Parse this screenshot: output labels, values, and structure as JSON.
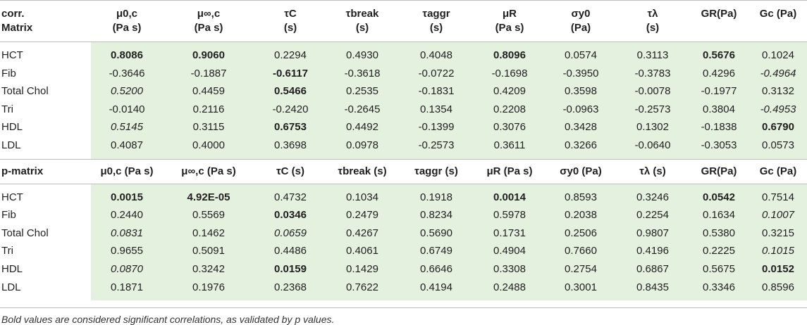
{
  "corr": {
    "header_label_line1": "corr.",
    "header_label_line2": "Matrix",
    "columns": [
      {
        "l1": "μ0,c",
        "l2": "(Pa s)"
      },
      {
        "l1": "μ∞,c",
        "l2": "(Pa s)"
      },
      {
        "l1": "τC",
        "l2": "(s)"
      },
      {
        "l1": "τbreak",
        "l2": "(s)"
      },
      {
        "l1": "τaggr",
        "l2": "(s)"
      },
      {
        "l1": "μR",
        "l2": "(Pa s)"
      },
      {
        "l1": "σy0",
        "l2": "(Pa)"
      },
      {
        "l1": "τλ",
        "l2": "(s)"
      },
      {
        "l1": "GR(Pa)",
        "l2": ""
      },
      {
        "l1": "Gc (Pa)",
        "l2": ""
      }
    ],
    "rows": [
      {
        "label": "HCT",
        "cells": [
          {
            "v": "0.8086",
            "s": "b"
          },
          {
            "v": "0.9060",
            "s": "b"
          },
          {
            "v": "0.2294",
            "s": ""
          },
          {
            "v": "0.4930",
            "s": ""
          },
          {
            "v": "0.4048",
            "s": ""
          },
          {
            "v": "0.8096",
            "s": "b"
          },
          {
            "v": "0.0574",
            "s": ""
          },
          {
            "v": "0.3113",
            "s": ""
          },
          {
            "v": "0.5676",
            "s": "b"
          },
          {
            "v": "0.1024",
            "s": ""
          }
        ]
      },
      {
        "label": "Fib",
        "cells": [
          {
            "v": "-0.3646",
            "s": ""
          },
          {
            "v": "-0.1887",
            "s": ""
          },
          {
            "v": "-0.6117",
            "s": "b"
          },
          {
            "v": "-0.3618",
            "s": ""
          },
          {
            "v": "-0.0722",
            "s": ""
          },
          {
            "v": "-0.1698",
            "s": ""
          },
          {
            "v": "-0.3950",
            "s": ""
          },
          {
            "v": "-0.3783",
            "s": ""
          },
          {
            "v": "0.4296",
            "s": ""
          },
          {
            "v": "-0.4964",
            "s": "i"
          }
        ]
      },
      {
        "label": "Total Chol",
        "cells": [
          {
            "v": "0.5200",
            "s": "i"
          },
          {
            "v": "0.4459",
            "s": ""
          },
          {
            "v": "0.5466",
            "s": "b"
          },
          {
            "v": "0.2535",
            "s": ""
          },
          {
            "v": "-0.1831",
            "s": ""
          },
          {
            "v": "0.4209",
            "s": ""
          },
          {
            "v": "0.3598",
            "s": ""
          },
          {
            "v": "-0.0078",
            "s": ""
          },
          {
            "v": "-0.1977",
            "s": ""
          },
          {
            "v": "0.3132",
            "s": ""
          }
        ]
      },
      {
        "label": "Tri",
        "cells": [
          {
            "v": "-0.0140",
            "s": ""
          },
          {
            "v": "0.2116",
            "s": ""
          },
          {
            "v": "-0.2420",
            "s": ""
          },
          {
            "v": "-0.2645",
            "s": ""
          },
          {
            "v": "0.1354",
            "s": ""
          },
          {
            "v": "0.2208",
            "s": ""
          },
          {
            "v": "-0.0963",
            "s": ""
          },
          {
            "v": "-0.2573",
            "s": ""
          },
          {
            "v": "0.3804",
            "s": ""
          },
          {
            "v": "-0.4953",
            "s": "i"
          }
        ]
      },
      {
        "label": "HDL",
        "cells": [
          {
            "v": "0.5145",
            "s": "i"
          },
          {
            "v": "0.3115",
            "s": ""
          },
          {
            "v": "0.6753",
            "s": "b"
          },
          {
            "v": "0.4492",
            "s": ""
          },
          {
            "v": "-0.1399",
            "s": ""
          },
          {
            "v": "0.3076",
            "s": ""
          },
          {
            "v": "0.3428",
            "s": ""
          },
          {
            "v": "0.1302",
            "s": ""
          },
          {
            "v": "-0.1838",
            "s": ""
          },
          {
            "v": "0.6790",
            "s": "b"
          }
        ]
      },
      {
        "label": "LDL",
        "cells": [
          {
            "v": "0.4087",
            "s": ""
          },
          {
            "v": "0.4000",
            "s": ""
          },
          {
            "v": "0.3698",
            "s": ""
          },
          {
            "v": "0.0978",
            "s": ""
          },
          {
            "v": "-0.2573",
            "s": ""
          },
          {
            "v": "0.3611",
            "s": ""
          },
          {
            "v": "0.3266",
            "s": ""
          },
          {
            "v": "-0.0640",
            "s": ""
          },
          {
            "v": "-0.3053",
            "s": ""
          },
          {
            "v": "0.0573",
            "s": ""
          }
        ]
      }
    ]
  },
  "pmatrix": {
    "header_label": "p-matrix",
    "columns": [
      "μ0,c (Pa s)",
      "μ∞,c (Pa s)",
      "τC (s)",
      "τbreak (s)",
      "τaggr (s)",
      "μR (Pa s)",
      "σy0 (Pa)",
      "τλ (s)",
      "GR(Pa)",
      "Gc (Pa)"
    ],
    "rows": [
      {
        "label": "HCT",
        "cells": [
          {
            "v": "0.0015",
            "s": "b"
          },
          {
            "v": "4.92E-05",
            "s": "b"
          },
          {
            "v": "0.4732",
            "s": ""
          },
          {
            "v": "0.1034",
            "s": ""
          },
          {
            "v": "0.1918",
            "s": ""
          },
          {
            "v": "0.0014",
            "s": "b"
          },
          {
            "v": "0.8593",
            "s": ""
          },
          {
            "v": "0.3246",
            "s": ""
          },
          {
            "v": "0.0542",
            "s": "b"
          },
          {
            "v": "0.7514",
            "s": ""
          }
        ]
      },
      {
        "label": "Fib",
        "cells": [
          {
            "v": "0.2440",
            "s": ""
          },
          {
            "v": "0.5569",
            "s": ""
          },
          {
            "v": "0.0346",
            "s": "b"
          },
          {
            "v": "0.2479",
            "s": ""
          },
          {
            "v": "0.8234",
            "s": ""
          },
          {
            "v": "0.5978",
            "s": ""
          },
          {
            "v": "0.2038",
            "s": ""
          },
          {
            "v": "0.2254",
            "s": ""
          },
          {
            "v": "0.1634",
            "s": ""
          },
          {
            "v": "0.1007",
            "s": "i"
          }
        ]
      },
      {
        "label": "Total Chol",
        "cells": [
          {
            "v": "0.0831",
            "s": "i"
          },
          {
            "v": "0.1462",
            "s": ""
          },
          {
            "v": "0.0659",
            "s": "i"
          },
          {
            "v": "0.4267",
            "s": ""
          },
          {
            "v": "0.5690",
            "s": ""
          },
          {
            "v": "0.1731",
            "s": ""
          },
          {
            "v": "0.2506",
            "s": ""
          },
          {
            "v": "0.9807",
            "s": ""
          },
          {
            "v": "0.5380",
            "s": ""
          },
          {
            "v": "0.3215",
            "s": ""
          }
        ]
      },
      {
        "label": "Tri",
        "cells": [
          {
            "v": "0.9655",
            "s": ""
          },
          {
            "v": "0.5091",
            "s": ""
          },
          {
            "v": "0.4486",
            "s": ""
          },
          {
            "v": "0.4061",
            "s": ""
          },
          {
            "v": "0.6749",
            "s": ""
          },
          {
            "v": "0.4904",
            "s": ""
          },
          {
            "v": "0.7660",
            "s": ""
          },
          {
            "v": "0.4196",
            "s": ""
          },
          {
            "v": "0.2225",
            "s": ""
          },
          {
            "v": "0.1015",
            "s": "i"
          }
        ]
      },
      {
        "label": "HDL",
        "cells": [
          {
            "v": "0.0870",
            "s": "i"
          },
          {
            "v": "0.3242",
            "s": ""
          },
          {
            "v": "0.0159",
            "s": "b"
          },
          {
            "v": "0.1429",
            "s": ""
          },
          {
            "v": "0.6646",
            "s": ""
          },
          {
            "v": "0.3308",
            "s": ""
          },
          {
            "v": "0.2754",
            "s": ""
          },
          {
            "v": "0.6867",
            "s": ""
          },
          {
            "v": "0.5675",
            "s": ""
          },
          {
            "v": "0.0152",
            "s": "b"
          }
        ]
      },
      {
        "label": "LDL",
        "cells": [
          {
            "v": "0.1871",
            "s": ""
          },
          {
            "v": "0.1976",
            "s": ""
          },
          {
            "v": "0.2368",
            "s": ""
          },
          {
            "v": "0.7622",
            "s": ""
          },
          {
            "v": "0.4194",
            "s": ""
          },
          {
            "v": "0.2488",
            "s": ""
          },
          {
            "v": "0.3001",
            "s": ""
          },
          {
            "v": "0.8435",
            "s": ""
          },
          {
            "v": "0.3346",
            "s": ""
          },
          {
            "v": "0.8596",
            "s": ""
          }
        ]
      }
    ]
  },
  "footnote": "Bold values are considered significant correlations, as validated by p values.",
  "colors": {
    "cell_background": "#e5f1df",
    "rule": "#bdbdbd",
    "text": "#1f1f1f"
  }
}
